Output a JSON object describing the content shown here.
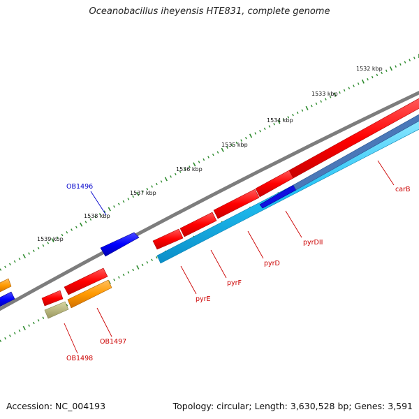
{
  "title": "Oceanobacillus iheyensis HTE831, complete genome",
  "footer": {
    "accession": "Accession: NC_004193",
    "summary": "Topology: circular; Length: 3,630,528 bp; Genes: 3,591"
  },
  "colors": {
    "backbone": "#808080",
    "forward_gene": "#ff0000",
    "reverse_gene": "#0000ff",
    "cds_forward": "#33ccff",
    "cds_reverse": "#ff9900",
    "other": "#b5b37a",
    "tick": "#2e8b2e",
    "label_forward": "#cc0000",
    "label_reverse": "#0000cc"
  },
  "ruler": {
    "labels": [
      "1532 kbp",
      "1533 kbp",
      "1534 kbp",
      "1535 kbp",
      "1536 kbp",
      "1537 kbp",
      "1538 kbp",
      "1539 kbp"
    ]
  },
  "gene_labels": [
    {
      "text": "OB1496",
      "color": "#0000cc"
    },
    {
      "text": "OB1497",
      "color": "#cc0000"
    },
    {
      "text": "OB1498",
      "color": "#cc0000"
    },
    {
      "text": "pyrE",
      "color": "#cc0000"
    },
    {
      "text": "pyrF",
      "color": "#cc0000"
    },
    {
      "text": "pyrD",
      "color": "#cc0000"
    },
    {
      "text": "pyrDII",
      "color": "#cc0000"
    },
    {
      "text": "carB",
      "color": "#cc0000"
    }
  ]
}
